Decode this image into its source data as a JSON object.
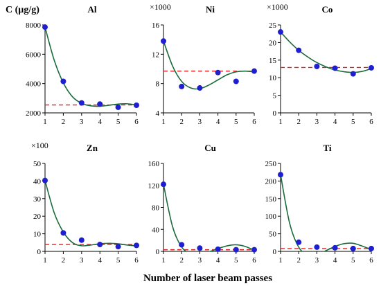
{
  "figure": {
    "y_axis_label": "C (µg/g)",
    "x_axis_label": "Number of laser beam passes"
  },
  "colors": {
    "points": "#1f1fd1",
    "fit": "#1a6b3c",
    "reference": "#e02020",
    "axis": "#000000"
  },
  "chart_data": [
    {
      "type": "scatter",
      "title": "Al",
      "multiplier": "",
      "x": [
        1,
        2,
        3,
        4,
        5,
        6
      ],
      "y": [
        7850,
        4150,
        2680,
        2600,
        2380,
        2520
      ],
      "fit_curve": [
        [
          1,
          7850
        ],
        [
          1.5,
          5600
        ],
        [
          2,
          4050
        ],
        [
          2.5,
          3100
        ],
        [
          3,
          2650
        ],
        [
          3.5,
          2480
        ],
        [
          4,
          2450
        ],
        [
          4.5,
          2520
        ],
        [
          5,
          2600
        ],
        [
          5.5,
          2620
        ],
        [
          6,
          2540
        ]
      ],
      "reference_line": 2540,
      "ylim": [
        2000,
        8000
      ],
      "yticks": [
        2000,
        4000,
        6000,
        8000
      ],
      "xticks": [
        1,
        2,
        3,
        4,
        5,
        6
      ]
    },
    {
      "type": "scatter",
      "title": "Ni",
      "multiplier": "×1000",
      "x": [
        1,
        2,
        3,
        4,
        5,
        6
      ],
      "y": [
        13.8,
        7.6,
        7.4,
        9.5,
        8.3,
        9.7
      ],
      "fit_curve": [
        [
          1,
          13.8
        ],
        [
          1.5,
          10.4
        ],
        [
          2,
          8.3
        ],
        [
          2.5,
          7.4
        ],
        [
          3,
          7.3
        ],
        [
          3.5,
          7.8
        ],
        [
          4,
          8.5
        ],
        [
          4.5,
          9.2
        ],
        [
          5,
          9.6
        ],
        [
          5.5,
          9.7
        ],
        [
          6,
          9.6
        ]
      ],
      "reference_line": 9.7,
      "ylim": [
        4,
        16
      ],
      "yticks": [
        4,
        8,
        12,
        16
      ],
      "xticks": [
        1,
        2,
        3,
        4,
        5,
        6
      ]
    },
    {
      "type": "scatter",
      "title": "Co",
      "multiplier": "×1000",
      "x": [
        1,
        2,
        3,
        4,
        5,
        6
      ],
      "y": [
        23.0,
        17.8,
        13.2,
        12.7,
        11.1,
        12.8
      ],
      "fit_curve": [
        [
          1,
          23.0
        ],
        [
          1.5,
          20.2
        ],
        [
          2,
          17.8
        ],
        [
          2.5,
          15.9
        ],
        [
          3,
          14.3
        ],
        [
          3.5,
          13.1
        ],
        [
          4,
          12.2
        ],
        [
          4.5,
          11.7
        ],
        [
          5,
          11.5
        ],
        [
          5.5,
          11.8
        ],
        [
          6,
          12.6
        ]
      ],
      "reference_line": 12.9,
      "ylim": [
        0,
        25
      ],
      "yticks": [
        0,
        5,
        10,
        15,
        20,
        25
      ],
      "xticks": [
        1,
        2,
        3,
        4,
        5,
        6
      ]
    },
    {
      "type": "scatter",
      "title": "Zn",
      "multiplier": "×100",
      "x": [
        1,
        2,
        3,
        4,
        5,
        6
      ],
      "y": [
        40.3,
        10.5,
        6.4,
        3.9,
        2.7,
        3.4
      ],
      "fit_curve": [
        [
          1,
          40.3
        ],
        [
          1.5,
          22
        ],
        [
          2,
          11
        ],
        [
          2.5,
          5
        ],
        [
          3,
          3.2
        ],
        [
          3.5,
          3.6
        ],
        [
          4,
          4.3
        ],
        [
          4.5,
          4.6
        ],
        [
          5,
          4.3
        ],
        [
          5.5,
          3.6
        ],
        [
          6,
          3.1
        ]
      ],
      "reference_line": 3.9,
      "ylim": [
        0,
        50
      ],
      "yticks": [
        0,
        10,
        20,
        30,
        40,
        50
      ],
      "xticks": [
        1,
        2,
        3,
        4,
        5,
        6
      ]
    },
    {
      "type": "scatter",
      "title": "Cu",
      "multiplier": "",
      "x": [
        1,
        2,
        3,
        4,
        5,
        6
      ],
      "y": [
        122,
        12,
        6,
        4,
        3,
        3
      ],
      "fit_curve": [
        [
          1,
          122
        ],
        [
          1.5,
          45
        ],
        [
          2,
          8
        ],
        [
          2.5,
          -4
        ],
        [
          3,
          -5
        ],
        [
          3.5,
          -1
        ],
        [
          4,
          5
        ],
        [
          4.5,
          10
        ],
        [
          5,
          12
        ],
        [
          5.5,
          9
        ],
        [
          6,
          2
        ]
      ],
      "reference_line": 3,
      "ylim": [
        0,
        160
      ],
      "yticks": [
        0,
        40,
        80,
        120,
        160
      ],
      "xticks": [
        1,
        2,
        3,
        4,
        5,
        6
      ]
    },
    {
      "type": "scatter",
      "title": "Ti",
      "multiplier": "",
      "x": [
        1,
        2,
        3,
        4,
        5,
        6
      ],
      "y": [
        218,
        26,
        12,
        10,
        8,
        8
      ],
      "fit_curve": [
        [
          1,
          218
        ],
        [
          1.5,
          80
        ],
        [
          2,
          12
        ],
        [
          2.5,
          -10
        ],
        [
          3,
          -10
        ],
        [
          3.5,
          2
        ],
        [
          4,
          14
        ],
        [
          4.5,
          22
        ],
        [
          5,
          23
        ],
        [
          5.5,
          15
        ],
        [
          6,
          5
        ]
      ],
      "reference_line": 8,
      "ylim": [
        0,
        250
      ],
      "yticks": [
        0,
        50,
        100,
        150,
        200,
        250
      ],
      "xticks": [
        1,
        2,
        3,
        4,
        5,
        6
      ]
    }
  ]
}
